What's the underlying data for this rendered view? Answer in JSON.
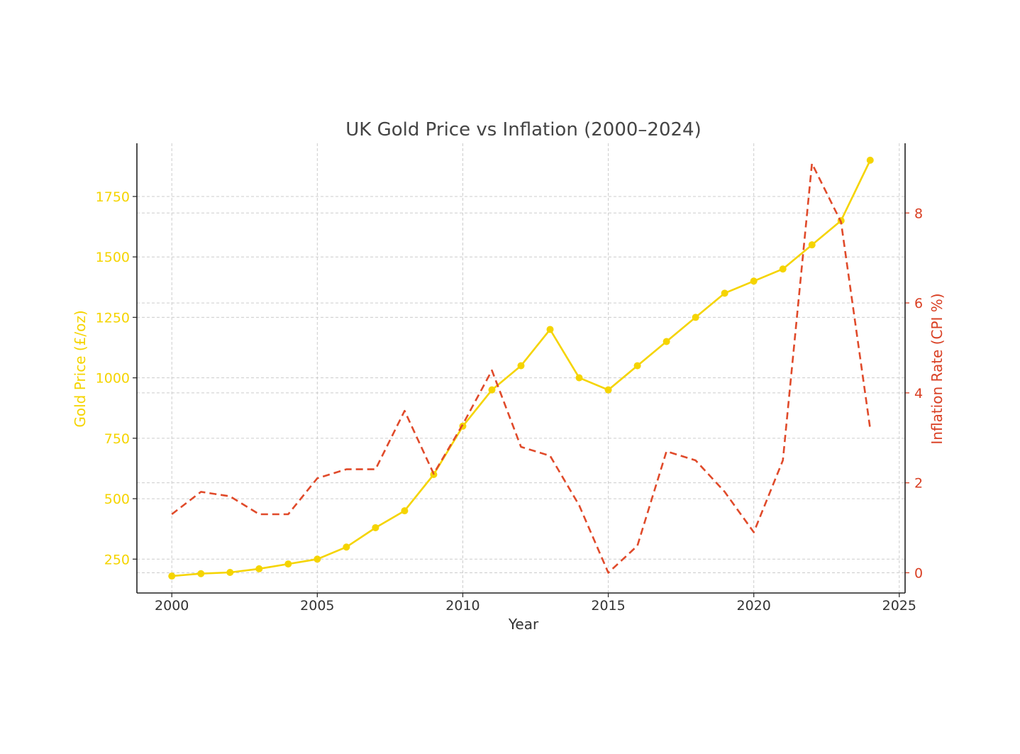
{
  "chart_data": {
    "type": "line",
    "title": "UK Gold Price vs Inflation (2000–2024)",
    "xlabel": "Year",
    "ylabel_left": "Gold Price (£/oz)",
    "ylabel_right": "Inflation Rate (CPI %)",
    "xlim": [
      1998.8,
      2025.2
    ],
    "ylim_left": [
      110,
      1970
    ],
    "ylim_right": [
      -0.45,
      9.55
    ],
    "x_ticks": [
      2000,
      2005,
      2010,
      2015,
      2020,
      2025
    ],
    "y_ticks_left": [
      250,
      500,
      750,
      1000,
      1250,
      1500,
      1750
    ],
    "y_ticks_right": [
      0,
      2,
      4,
      6,
      8
    ],
    "grid": true,
    "x": [
      2000,
      2001,
      2002,
      2003,
      2004,
      2005,
      2006,
      2007,
      2008,
      2009,
      2010,
      2011,
      2012,
      2013,
      2014,
      2015,
      2016,
      2017,
      2018,
      2019,
      2020,
      2021,
      2022,
      2023,
      2024
    ],
    "series": [
      {
        "name": "Gold Price (£/oz)",
        "axis": "left",
        "style": "solid-markers",
        "color": "#f5d400",
        "values": [
          180,
          190,
          195,
          210,
          230,
          250,
          300,
          380,
          450,
          600,
          800,
          950,
          1050,
          1200,
          1000,
          950,
          1050,
          1150,
          1250,
          1350,
          1400,
          1450,
          1550,
          1650,
          1900
        ]
      },
      {
        "name": "Inflation Rate (CPI %)",
        "axis": "right",
        "style": "dashed",
        "color": "#e04a2a",
        "values": [
          1.3,
          1.8,
          1.7,
          1.3,
          1.3,
          2.1,
          2.3,
          2.3,
          3.6,
          2.2,
          3.3,
          4.5,
          2.8,
          2.6,
          1.5,
          0.0,
          0.6,
          2.7,
          2.5,
          1.8,
          0.9,
          2.5,
          9.1,
          7.8,
          3.2
        ]
      }
    ]
  },
  "colors": {
    "left_axis": "#f5d400",
    "right_axis": "#d93f23",
    "text": "#333333"
  }
}
